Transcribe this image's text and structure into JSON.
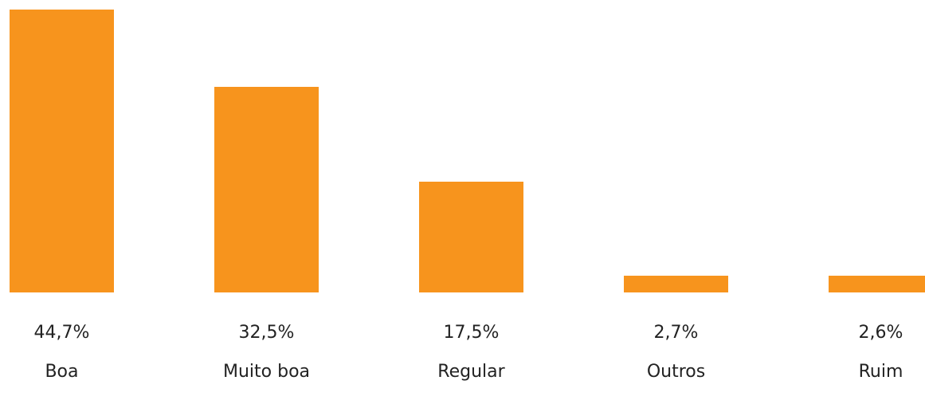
{
  "chart_data": {
    "type": "bar",
    "categories": [
      "Boa",
      "Muito boa",
      "Regular",
      "Outros",
      "Ruim"
    ],
    "values": [
      44.7,
      32.5,
      17.5,
      2.7,
      2.6
    ],
    "value_labels": [
      "44,7%",
      "32,5%",
      "17,5%",
      "2,7%",
      "2,6%"
    ],
    "color": "#f7941d"
  }
}
